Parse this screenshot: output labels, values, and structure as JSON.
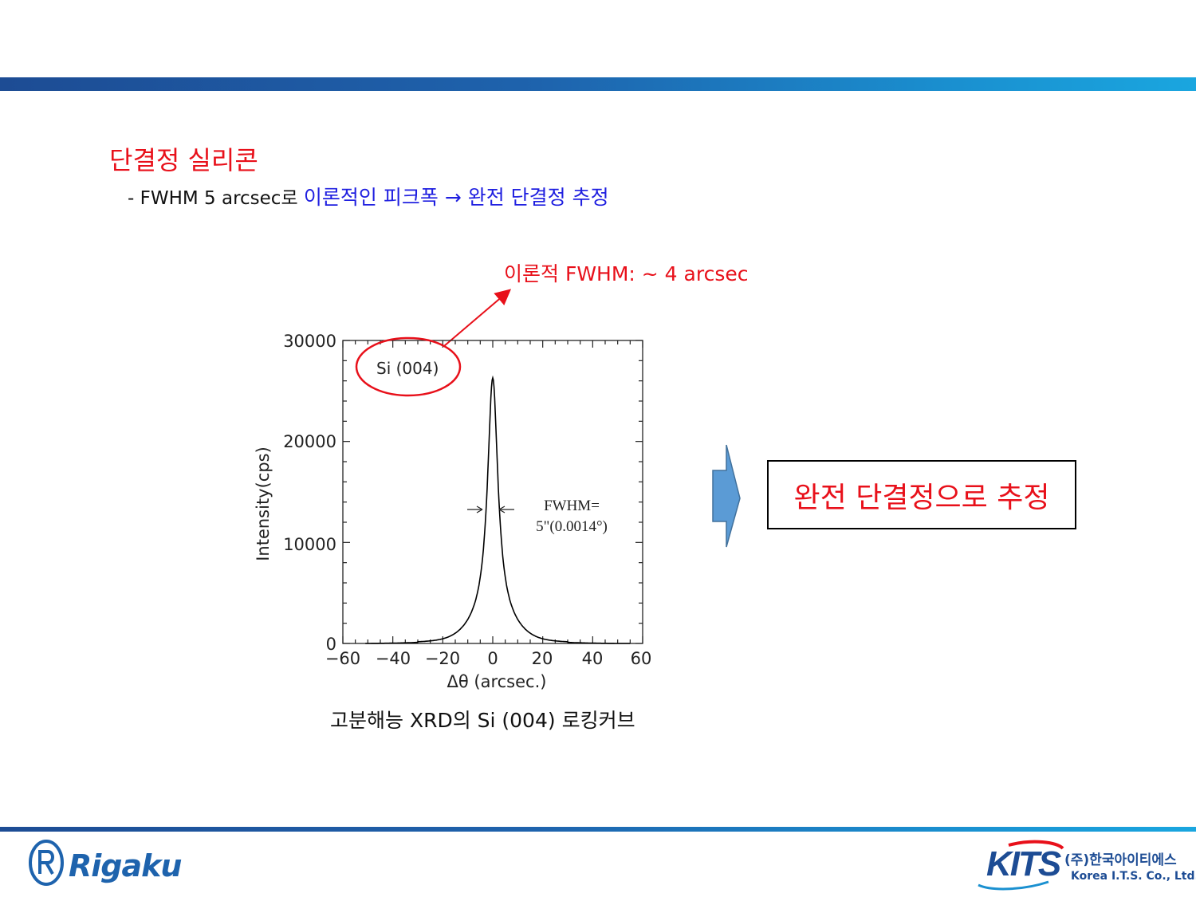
{
  "slide": {
    "title": "단결정 실리콘",
    "subtitle_prefix": "- FWHM 5 arcsec로 ",
    "subtitle_highlight": "이론적인 피크폭 → 완전 단결정 추정",
    "annotation": "이론적 FWHM: ~ 4 arcsec",
    "caption": "고분해능 XRD의 Si (004) 로킹커브",
    "result": "완전 단결정으로 추정"
  },
  "chart_data": {
    "type": "line",
    "series_label": "Si (004)",
    "xlabel": "Δθ (arcsec.)",
    "ylabel": "Intensity(cps)",
    "xlim": [
      -60,
      60
    ],
    "ylim": [
      0,
      30000
    ],
    "x_ticks": [
      "−60",
      "−40",
      "−20",
      "0",
      "20",
      "40",
      "60"
    ],
    "y_ticks": [
      "0",
      "10000",
      "20000",
      "30000"
    ],
    "fwhm_label_line1": "FWHM=",
    "fwhm_label_line2": "5\"(0.0014°)",
    "peak": {
      "center": 0,
      "height": 26300,
      "fwhm": 5
    },
    "colors": {
      "curve": "#000000",
      "highlight": "#e8101a"
    }
  },
  "footer": {
    "left_logo": "Rigaku",
    "right_logo": "KITS",
    "right_company_ko": "(주)한국아이티에스",
    "right_company_en": "Korea I.T.S. Co., Ltd."
  },
  "colors": {
    "band": "#1e63ad",
    "accent_red": "#e8101a",
    "accent_blue": "#1f1fe0",
    "arrow_fill": "#5b9bd5"
  }
}
